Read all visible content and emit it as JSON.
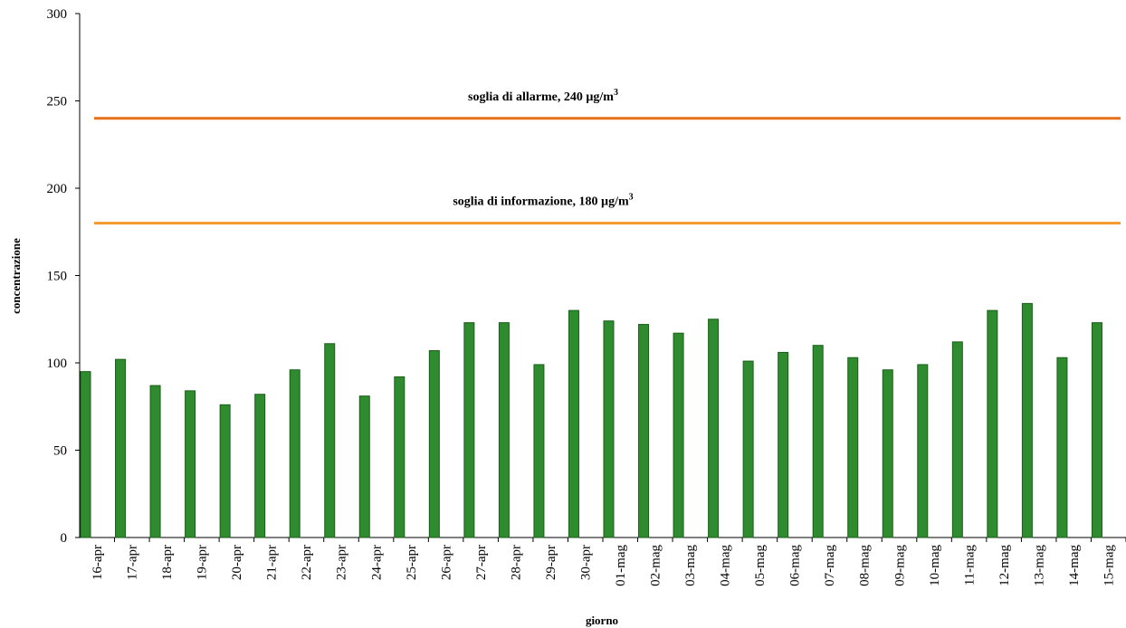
{
  "chart_data": {
    "type": "bar",
    "x_label": "giorno",
    "y_label": "concentrazione",
    "categories": [
      "16-apr",
      "17-apr",
      "18-apr",
      "19-apr",
      "20-apr",
      "21-apr",
      "22-apr",
      "23-apr",
      "24-apr",
      "25-apr",
      "26-apr",
      "27-apr",
      "28-apr",
      "29-apr",
      "30-apr",
      "01-mag",
      "02-mag",
      "03-mag",
      "04-mag",
      "05-mag",
      "06-mag",
      "07-mag",
      "08-mag",
      "09-mag",
      "10-mag",
      "11-mag",
      "12-mag",
      "13-mag",
      "14-mag",
      "15-mag"
    ],
    "values": [
      95,
      102,
      87,
      84,
      76,
      82,
      96,
      111,
      81,
      92,
      107,
      123,
      123,
      99,
      130,
      124,
      122,
      117,
      125,
      101,
      106,
      110,
      103,
      96,
      99,
      112,
      130,
      134,
      103,
      123
    ],
    "color": "#2e8b2e",
    "ylim": [
      0,
      300
    ],
    "yticks": [
      0,
      50,
      100,
      150,
      200,
      250,
      300
    ],
    "thresholds": [
      {
        "text": "soglia di allarme,   240 µg/m",
        "sup": "3",
        "value": 240,
        "color": "#e8701a"
      },
      {
        "text": "soglia di informazione,  180 µg/m",
        "sup": "3",
        "value": 180,
        "color": "#f29a2e"
      }
    ]
  }
}
